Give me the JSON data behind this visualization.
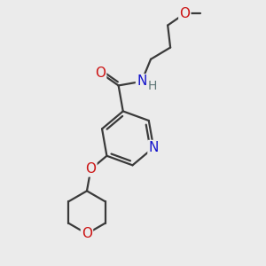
{
  "bg_color": "#ebebeb",
  "bond_color": "#3a3a3a",
  "N_color": "#1414cc",
  "O_color": "#cc1414",
  "H_color": "#607878",
  "bond_width": 1.6,
  "font_size_atom": 11,
  "fig_size": [
    3.0,
    3.0
  ],
  "dpi": 100,
  "xlim": [
    0,
    10
  ],
  "ylim": [
    0,
    10
  ]
}
